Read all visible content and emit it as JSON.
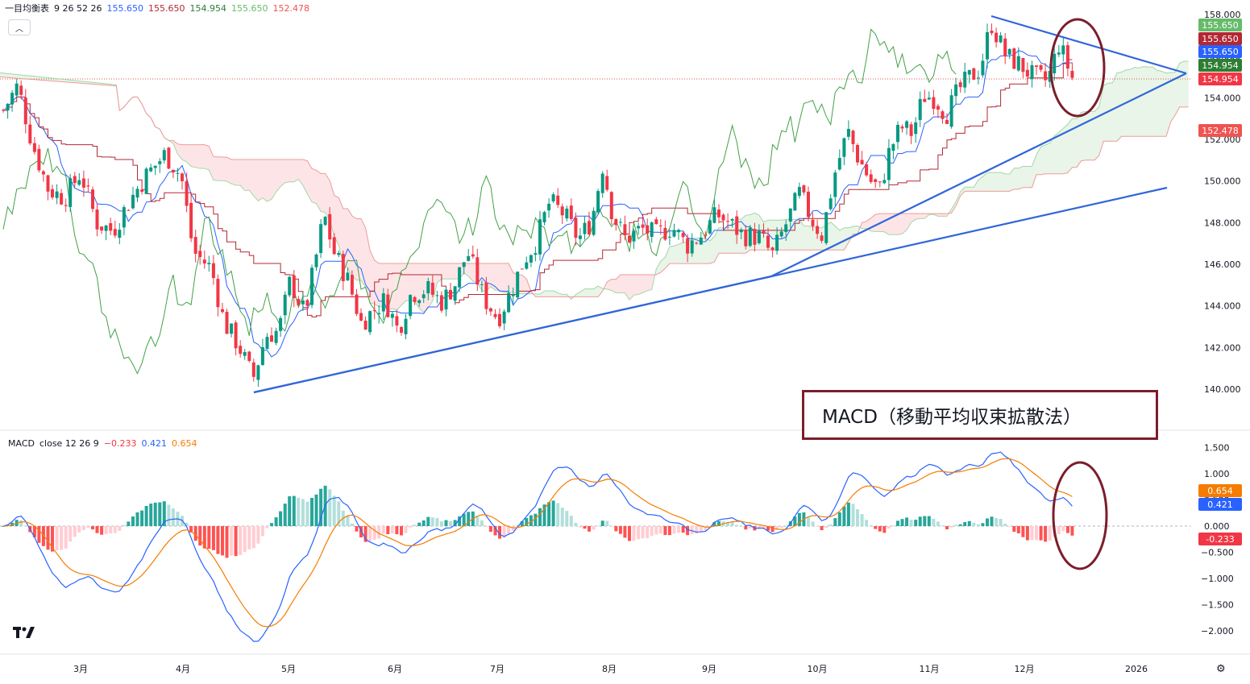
{
  "indicator_headers": {
    "ichimoku": {
      "name": "一目均衡表",
      "params": "9 26 52 26",
      "values": [
        "155.650",
        "155.650",
        "154.954",
        "155.650",
        "152.478"
      ],
      "colors": [
        "#2962ff",
        "#b22833",
        "#2e7d32",
        "#66bb6a",
        "#ef5350"
      ]
    },
    "macd": {
      "name": "MACD",
      "params": "close 12 26 9",
      "values": [
        "−0.233",
        "0.421",
        "0.654"
      ],
      "colors": [
        "#f23645",
        "#2962ff",
        "#f57c00"
      ]
    }
  },
  "annotation_box": {
    "text": "MACD（移動平均収束拡散法）"
  },
  "price_badges": [
    {
      "text": "155.650",
      "color": "#66bb6a"
    },
    {
      "text": "155.650",
      "color": "#b22833"
    },
    {
      "text": "155.650",
      "color": "#2962ff"
    },
    {
      "text": "154.954",
      "color": "#2e7d32"
    },
    {
      "text": "154.954",
      "color": "#f23645"
    },
    {
      "text": "152.478",
      "color": "#ef5350"
    }
  ],
  "macd_badges": [
    {
      "text": "0.654",
      "color": "#f57c00"
    },
    {
      "text": "0.421",
      "color": "#2962ff"
    },
    {
      "text": "-0.233",
      "color": "#f23645"
    }
  ],
  "icons": {
    "collapse": "chevron-up-icon",
    "logo": "tradingview-logo-icon",
    "settings": "gear-icon"
  },
  "chart_data": [
    {
      "type": "candlestick",
      "title": "一目均衡表 9 26 52 26",
      "y_ticks": [
        "158.000",
        "156.000",
        "154.000",
        "152.000",
        "150.000",
        "148.000",
        "146.000",
        "144.000",
        "142.000",
        "140.000"
      ],
      "ylim": [
        139.0,
        158.0
      ],
      "x_ticks": [
        "3月",
        "4月",
        "5月",
        "6月",
        "7月",
        "8月",
        "9月",
        "10月",
        "11月",
        "12月",
        "2026"
      ],
      "candles_ohlc": [
        [
          153.2,
          154.5,
          153.0,
          154.2
        ],
        [
          151.6,
          152.4,
          151.4,
          152.2
        ],
        [
          152.1,
          152.2,
          149.1,
          149.4
        ],
        [
          149.6,
          150.8,
          149.4,
          150.6
        ],
        [
          148.5,
          149.5,
          147.9,
          149.4
        ],
        [
          150.1,
          151.2,
          149.9,
          150.9
        ],
        [
          147.8,
          148.0,
          146.4,
          146.4
        ],
        [
          148.3,
          149.6,
          148.1,
          149.1
        ],
        [
          149.3,
          149.6,
          148.5,
          149.1
        ],
        [
          149.2,
          151.7,
          148.6,
          151.4
        ],
        [
          150.8,
          150.8,
          149.5,
          149.7
        ],
        [
          149.0,
          149.3,
          146.5,
          147.1
        ],
        [
          145.6,
          147.2,
          145.1,
          146.7
        ],
        [
          144.3,
          144.4,
          142.0,
          142.4
        ],
        [
          141.8,
          142.0,
          139.9,
          140.9
        ],
        [
          142.4,
          145.3,
          141.9,
          145.0
        ],
        [
          143.4,
          144.1,
          142.2,
          142.6
        ],
        [
          144.6,
          146.3,
          144.0,
          146.3
        ],
        [
          147.0,
          149.0,
          146.9,
          148.5
        ],
        [
          146.1,
          146.8,
          146.0,
          146.4
        ],
        [
          143.6,
          143.6,
          141.9,
          142.4
        ],
        [
          145.4,
          145.7,
          143.7,
          143.8
        ],
        [
          143.1,
          146.1,
          142.9,
          145.9
        ],
        [
          145.5,
          146.4,
          145.5,
          146.4
        ],
        [
          144.9,
          145.0,
          143.6,
          144.2
        ],
        [
          143.9,
          145.0,
          143.8,
          144.8
        ],
        [
          145.4,
          146.3,
          145.0,
          145.3
        ],
        [
          144.0,
          144.4,
          143.9,
          144.2
        ],
        [
          142.6,
          145.6,
          142.5,
          145.2
        ],
        [
          144.8,
          146.9,
          144.8,
          146.8
        ],
        [
          146.7,
          148.1,
          146.2,
          146.3
        ],
        [
          147.6,
          149.2,
          147.4,
          149.1
        ],
        [
          147.9,
          148.8,
          147.2,
          148.0
        ],
        [
          146.7,
          148.0,
          146.3,
          148.0
        ],
        [
          148.1,
          148.6,
          147.0,
          147.1
        ],
        [
          149.1,
          151.0,
          149.0,
          150.6
        ],
        [
          147.6,
          148.5,
          147.4,
          148.2
        ],
        [
          148.0,
          148.3,
          146.8,
          147.2
        ],
        [
          147.8,
          148.4,
          147.1,
          147.9
        ],
        [
          148.5,
          149.0,
          146.8,
          148.2
        ],
        [
          147.3,
          147.9,
          147.1,
          147.8
        ],
        [
          147.0,
          147.3,
          146.7,
          146.9
        ],
        [
          148.2,
          148.2,
          147.0,
          147.2
        ],
        [
          148.3,
          149.0,
          147.6,
          148.8
        ],
        [
          147.6,
          148.7,
          147.6,
          148.0
        ],
        [
          147.4,
          148.6,
          147.0,
          147.4
        ],
        [
          147.6,
          148.4,
          147.0,
          147.5
        ],
        [
          146.6,
          147.4,
          146.4,
          147.3
        ],
        [
          148.4,
          148.9,
          147.3,
          147.5
        ],
        [
          148.7,
          149.0,
          147.9,
          148.1
        ],
        [
          148.9,
          150.2,
          147.4,
          150.1
        ],
        [
          148.2,
          148.4,
          147.5,
          147.7
        ],
        [
          150.8,
          152.4,
          150.8,
          152.3
        ],
        [
          152.0,
          152.1,
          149.9,
          150.2
        ],
        [
          150.7,
          151.4,
          149.6,
          149.8
        ],
        [
          151.6,
          152.5,
          151.3,
          152.3
        ],
        [
          152.8,
          153.0,
          152.2,
          152.7
        ],
        [
          154.4,
          154.6,
          153.4,
          153.8
        ],
        [
          154.5,
          154.8,
          153.8,
          154.0
        ],
        [
          153.0,
          154.4,
          152.8,
          154.2
        ],
        [
          154.7,
          155.7,
          154.0,
          155.2
        ],
        [
          156.9,
          157.7,
          156.9,
          157.6
        ],
        [
          156.5,
          156.9,
          155.3,
          155.7
        ],
        [
          155.3,
          155.9,
          155.1,
          155.5
        ],
        [
          155.8,
          156.0,
          155.2,
          155.4
        ],
        [
          155.7,
          157.5,
          155.6,
          157.0
        ],
        [
          155.5,
          155.5,
          154.9,
          154.954
        ]
      ],
      "tenkan_line_start": 154.7,
      "kijun_line_start": 154.9,
      "macd_panel": {
        "y_ticks": [
          "1.500",
          "1.000",
          "0.500",
          "0.000",
          "-0.500",
          "-1.000",
          "-1.500",
          "-2.000"
        ],
        "ylim": [
          -2.4,
          1.9
        ],
        "macd_last": 0.421,
        "signal_last": 0.654,
        "histogram_last": -0.233
      }
    }
  ]
}
